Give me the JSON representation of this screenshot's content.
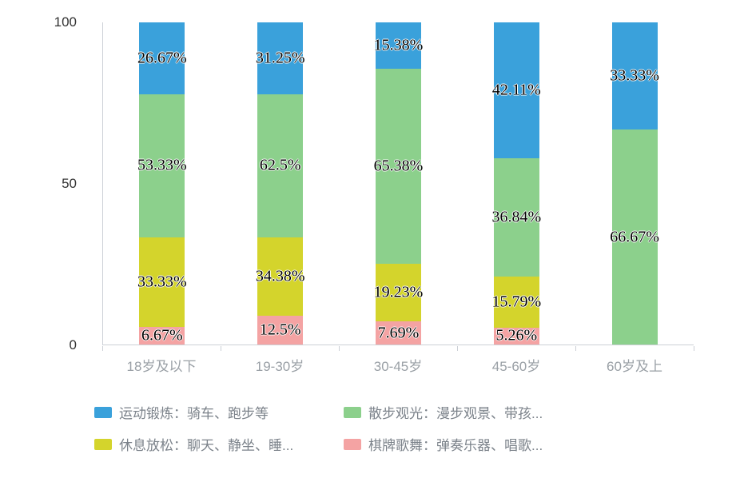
{
  "chart_data": {
    "type": "bar",
    "variant": "stacked",
    "normalize_each_bar_to_100": true,
    "title": "",
    "categories": [
      "18岁及以下",
      "19-30岁",
      "30-45岁",
      "45-60岁",
      "60岁及上"
    ],
    "series": [
      {
        "name": "运动锻炼：骑车、跑步等",
        "color": "#3AA1DB",
        "values": [
          26.67,
          31.25,
          15.38,
          42.11,
          33.33
        ]
      },
      {
        "name": "散步观光：漫步观景、带孩...",
        "color": "#8CD08C",
        "values": [
          53.33,
          62.5,
          65.38,
          36.84,
          66.67
        ]
      },
      {
        "name": "休息放松：聊天、静坐、睡...",
        "color": "#D4D42C",
        "values": [
          33.33,
          34.38,
          19.23,
          15.79,
          0
        ]
      },
      {
        "name": "棋牌歌舞：弹奏乐器、唱歌...",
        "color": "#F4A3A3",
        "values": [
          6.67,
          12.5,
          7.69,
          5.26,
          0
        ]
      }
    ],
    "value_suffix": "%",
    "bar_labels_shown": true,
    "y_axis": {
      "ticks": [
        "100",
        "50",
        "0"
      ],
      "min": 0,
      "max": 100
    },
    "x_axis_tick_count": 6,
    "grid": false,
    "legend_position": "bottom"
  },
  "colors": {
    "background": "#ffffff",
    "axis_line": "#ccd0d6",
    "category_label": "#9aa0a6",
    "y_tick_label": "#333333",
    "bar_label_text": "#000000",
    "legend_text": "#7b828a"
  }
}
